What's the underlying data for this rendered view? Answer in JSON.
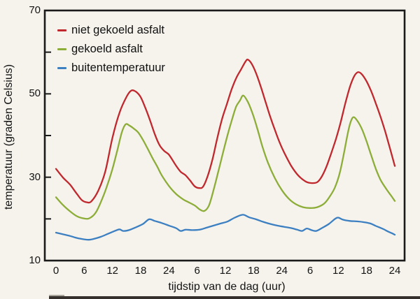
{
  "legend": [
    {
      "label": "niet gekoeld asfalt",
      "color": "#c0282e"
    },
    {
      "label": "gekoeld asfalt",
      "color": "#8dad39"
    },
    {
      "label": "buitentemperatuur",
      "color": "#3d80c2"
    }
  ],
  "chart_data": {
    "type": "line",
    "title": "",
    "xlabel": "tijdstip van de dag (uur)",
    "ylabel": "temperatuur (graden Celsius)",
    "xlim": [
      0,
      72
    ],
    "ylim": [
      10,
      70
    ],
    "grid": false,
    "legend_position": "top-left-inside",
    "x_tick_hours": [
      0,
      6,
      12,
      18,
      24,
      30,
      36,
      42,
      48,
      54,
      60,
      66,
      72
    ],
    "x_tick_labels": [
      "0",
      "6",
      "12",
      "18",
      "24",
      "6",
      "12",
      "18",
      "24",
      "6",
      "12",
      "18",
      "24"
    ],
    "y_tick_labels": [
      "10",
      "30",
      "50",
      "70"
    ],
    "y_major_ticks": [
      10,
      30,
      50,
      70
    ],
    "y_minor_ticks": [
      20,
      40,
      60
    ],
    "series": [
      {
        "name": "niet gekoeld asfalt",
        "color": "#c0282e",
        "points": [
          [
            0,
            32.0
          ],
          [
            1.5,
            29.9
          ],
          [
            3,
            28.2
          ],
          [
            4.5,
            25.9
          ],
          [
            5.5,
            24.5
          ],
          [
            6.5,
            24.0
          ],
          [
            7.5,
            24.2
          ],
          [
            9,
            26.8
          ],
          [
            10.5,
            31.5
          ],
          [
            12,
            39.5
          ],
          [
            13.5,
            45.5
          ],
          [
            15,
            49.3
          ],
          [
            16,
            50.8
          ],
          [
            17,
            50.5
          ],
          [
            18,
            49.2
          ],
          [
            19,
            46.6
          ],
          [
            20,
            43.6
          ],
          [
            21,
            40.3
          ],
          [
            22,
            37.7
          ],
          [
            23,
            36.3
          ],
          [
            24,
            35.4
          ],
          [
            25.5,
            32.8
          ],
          [
            26.5,
            31.3
          ],
          [
            27.5,
            30.5
          ],
          [
            28.5,
            29.2
          ],
          [
            29.5,
            27.8
          ],
          [
            30.5,
            27.4
          ],
          [
            31.3,
            27.8
          ],
          [
            32.3,
            30.5
          ],
          [
            33.3,
            34.5
          ],
          [
            34.3,
            39.5
          ],
          [
            35.3,
            44.0
          ],
          [
            36.3,
            47.5
          ],
          [
            37.3,
            51.0
          ],
          [
            38.3,
            53.8
          ],
          [
            39.3,
            55.8
          ],
          [
            40.3,
            57.8
          ],
          [
            40.8,
            58.2
          ],
          [
            41.6,
            57.2
          ],
          [
            42.5,
            55.0
          ],
          [
            43.5,
            51.8
          ],
          [
            44.5,
            48.2
          ],
          [
            45.5,
            44.6
          ],
          [
            46.5,
            41.4
          ],
          [
            47.5,
            38.4
          ],
          [
            48.5,
            35.9
          ],
          [
            50,
            32.7
          ],
          [
            51.5,
            30.4
          ],
          [
            53,
            29.0
          ],
          [
            54.2,
            28.6
          ],
          [
            55.5,
            28.8
          ],
          [
            56.5,
            30.2
          ],
          [
            57.5,
            32.6
          ],
          [
            58.5,
            35.8
          ],
          [
            59.5,
            39.2
          ],
          [
            60.5,
            43.2
          ],
          [
            61.5,
            47.8
          ],
          [
            62.5,
            51.8
          ],
          [
            63.4,
            54.3
          ],
          [
            64.2,
            55.2
          ],
          [
            65,
            54.7
          ],
          [
            66,
            53.0
          ],
          [
            67,
            50.6
          ],
          [
            68,
            47.6
          ],
          [
            69,
            44.4
          ],
          [
            70,
            40.8
          ],
          [
            71,
            36.8
          ],
          [
            72,
            32.7
          ]
        ]
      },
      {
        "name": "gekoeld asfalt",
        "color": "#8dad39",
        "points": [
          [
            0,
            25.2
          ],
          [
            1.5,
            23.3
          ],
          [
            3,
            21.8
          ],
          [
            4.5,
            20.6
          ],
          [
            5.5,
            20.2
          ],
          [
            7,
            20.1
          ],
          [
            8.5,
            21.6
          ],
          [
            10,
            25.3
          ],
          [
            11,
            28.4
          ],
          [
            12,
            32.0
          ],
          [
            13,
            36.3
          ],
          [
            14,
            40.8
          ],
          [
            14.8,
            42.7
          ],
          [
            15.6,
            42.4
          ],
          [
            16.5,
            41.7
          ],
          [
            17.5,
            40.7
          ],
          [
            18.5,
            38.9
          ],
          [
            19.5,
            36.8
          ],
          [
            20.5,
            34.6
          ],
          [
            21.5,
            32.6
          ],
          [
            22.5,
            30.4
          ],
          [
            24,
            27.9
          ],
          [
            25.5,
            26.0
          ],
          [
            27,
            24.7
          ],
          [
            28,
            24.1
          ],
          [
            29.5,
            23.2
          ],
          [
            30.5,
            22.3
          ],
          [
            31.5,
            21.9
          ],
          [
            32.5,
            23.2
          ],
          [
            33.5,
            27.0
          ],
          [
            34.5,
            31.4
          ],
          [
            35.5,
            35.9
          ],
          [
            36.5,
            40.3
          ],
          [
            37.5,
            44.2
          ],
          [
            38.3,
            47.0
          ],
          [
            39.1,
            48.4
          ],
          [
            39.8,
            49.6
          ],
          [
            40.8,
            48.0
          ],
          [
            41.8,
            45.2
          ],
          [
            42.8,
            41.6
          ],
          [
            43.8,
            37.6
          ],
          [
            45,
            33.6
          ],
          [
            46.5,
            29.8
          ],
          [
            48,
            26.9
          ],
          [
            49.5,
            24.8
          ],
          [
            51,
            23.5
          ],
          [
            52.5,
            22.8
          ],
          [
            54,
            22.6
          ],
          [
            55.5,
            22.8
          ],
          [
            57,
            23.7
          ],
          [
            58.2,
            25.4
          ],
          [
            59.3,
            27.6
          ],
          [
            60.3,
            31.0
          ],
          [
            61.2,
            35.8
          ],
          [
            62,
            40.5
          ],
          [
            62.6,
            43.2
          ],
          [
            63.2,
            44.4
          ],
          [
            64,
            43.6
          ],
          [
            65,
            41.6
          ],
          [
            66,
            38.6
          ],
          [
            67,
            35.2
          ],
          [
            68,
            31.9
          ],
          [
            69,
            29.3
          ],
          [
            70.3,
            27.0
          ],
          [
            71.2,
            25.6
          ],
          [
            72,
            24.3
          ]
        ]
      },
      {
        "name": "buitentemperatuur",
        "color": "#3d80c2",
        "points": [
          [
            0,
            16.7
          ],
          [
            1.5,
            16.3
          ],
          [
            3,
            15.9
          ],
          [
            4.5,
            15.4
          ],
          [
            6,
            15.1
          ],
          [
            7,
            15.0
          ],
          [
            8,
            15.2
          ],
          [
            9.5,
            15.7
          ],
          [
            11,
            16.4
          ],
          [
            12.5,
            17.1
          ],
          [
            13.5,
            17.5
          ],
          [
            14.3,
            17.1
          ],
          [
            15.5,
            17.3
          ],
          [
            17,
            18.0
          ],
          [
            18.5,
            18.8
          ],
          [
            19.8,
            19.9
          ],
          [
            21,
            19.5
          ],
          [
            22.5,
            19.0
          ],
          [
            24,
            18.4
          ],
          [
            25.5,
            17.8
          ],
          [
            26.5,
            17.1
          ],
          [
            27.5,
            17.4
          ],
          [
            29,
            17.3
          ],
          [
            30.5,
            17.4
          ],
          [
            32,
            17.9
          ],
          [
            33.5,
            18.4
          ],
          [
            35,
            18.9
          ],
          [
            36.5,
            19.4
          ],
          [
            38,
            20.3
          ],
          [
            39.7,
            21.0
          ],
          [
            41,
            20.4
          ],
          [
            42.5,
            19.9
          ],
          [
            44,
            19.3
          ],
          [
            45.5,
            18.8
          ],
          [
            47,
            18.4
          ],
          [
            48.5,
            18.1
          ],
          [
            50,
            17.8
          ],
          [
            51.3,
            17.4
          ],
          [
            52.3,
            17.1
          ],
          [
            53.3,
            17.7
          ],
          [
            54.3,
            17.3
          ],
          [
            55.3,
            17.1
          ],
          [
            56.5,
            17.8
          ],
          [
            58,
            18.8
          ],
          [
            59.3,
            20.0
          ],
          [
            60,
            20.3
          ],
          [
            61,
            19.8
          ],
          [
            62.5,
            19.5
          ],
          [
            64,
            19.4
          ],
          [
            65.5,
            19.2
          ],
          [
            66.8,
            18.9
          ],
          [
            68,
            18.3
          ],
          [
            69.3,
            17.7
          ],
          [
            70.5,
            17.0
          ],
          [
            71.5,
            16.5
          ],
          [
            72,
            16.2
          ]
        ]
      }
    ]
  }
}
